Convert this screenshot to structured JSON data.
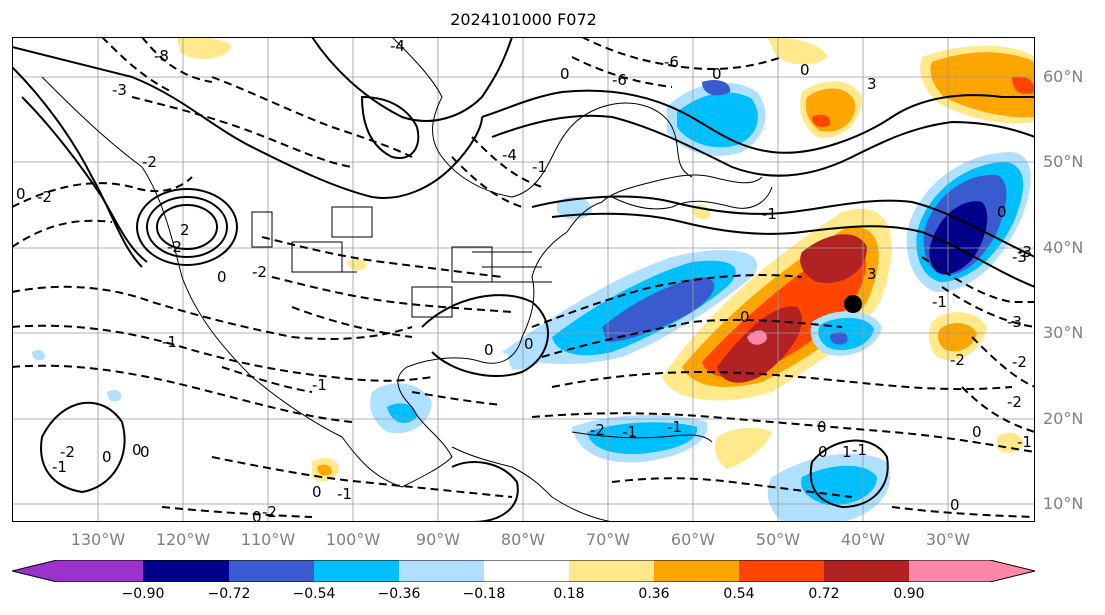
{
  "title": "2024101000 F072",
  "lat_labels": [
    "60°N",
    "50°N",
    "40°N",
    "30°N",
    "20°N",
    "10°N"
  ],
  "lon_labels": [
    "130°W",
    "120°W",
    "110°W",
    "100°W",
    "90°W",
    "80°W",
    "70°W",
    "60°W",
    "50°W",
    "40°W",
    "30°W"
  ],
  "colorbar": {
    "ticks": [
      "−0.90",
      "−0.72",
      "−0.54",
      "−0.36",
      "−0.18",
      "0.18",
      "0.36",
      "0.54",
      "0.72",
      "0.90"
    ],
    "colors": [
      "#9933cc",
      "#00008b",
      "#3a5bd0",
      "#00bfff",
      "#b0e0ff",
      "#ffffff",
      "#ffe98a",
      "#ffa500",
      "#ff4500",
      "#b22222",
      "#ff88aa"
    ]
  },
  "contour_labels": [
    "-8",
    "-4",
    "-6",
    "0",
    "-3",
    "-6",
    "0",
    "-2",
    "-4",
    "-2",
    "0",
    "-2",
    "-3",
    "0",
    "0",
    "-1",
    "0",
    "0",
    "-1",
    "0",
    "-1",
    "0",
    "0",
    "3",
    "-1",
    "-1",
    "-2",
    "-2",
    "3",
    "1",
    "0",
    "-3",
    "-3",
    "-2",
    "2",
    "0",
    "-2",
    "-1",
    "-2",
    "0",
    "-1",
    "0",
    "-2",
    "0",
    "-1",
    "-1",
    "-1",
    "0",
    "0",
    "-1",
    "-2",
    "0"
  ]
}
